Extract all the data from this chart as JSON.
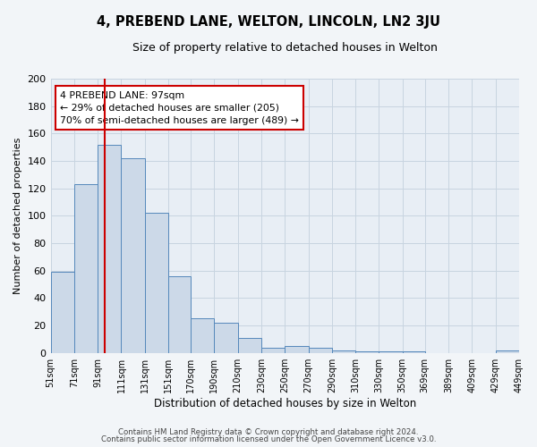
{
  "title": "4, PREBEND LANE, WELTON, LINCOLN, LN2 3JU",
  "subtitle": "Size of property relative to detached houses in Welton",
  "xlabel": "Distribution of detached houses by size in Welton",
  "ylabel": "Number of detached properties",
  "bar_color": "#ccd9e8",
  "bar_edge_color": "#5588bb",
  "grid_color": "#c8d4e0",
  "background_color": "#e8eef5",
  "fig_background": "#f2f5f8",
  "red_line_x": 97,
  "annotation_title": "4 PREBEND LANE: 97sqm",
  "annotation_line1": "← 29% of detached houses are smaller (205)",
  "annotation_line2": "70% of semi-detached houses are larger (489) →",
  "bins": [
    51,
    71,
    91,
    111,
    131,
    151,
    170,
    190,
    210,
    230,
    250,
    270,
    290,
    310,
    330,
    350,
    369,
    389,
    409,
    429,
    449
  ],
  "counts": [
    59,
    123,
    152,
    142,
    102,
    56,
    25,
    22,
    11,
    4,
    5,
    4,
    2,
    1,
    1,
    1,
    0,
    0,
    0,
    2
  ],
  "ylim": [
    0,
    200
  ],
  "yticks": [
    0,
    20,
    40,
    60,
    80,
    100,
    120,
    140,
    160,
    180,
    200
  ],
  "footer_line1": "Contains HM Land Registry data © Crown copyright and database right 2024.",
  "footer_line2": "Contains public sector information licensed under the Open Government Licence v3.0."
}
